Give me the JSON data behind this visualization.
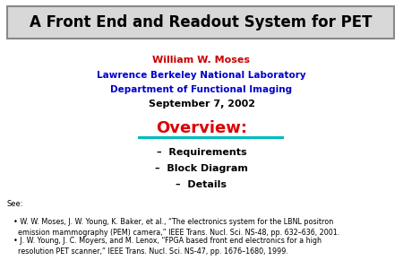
{
  "title": "A Front End and Readout System for PET",
  "author": "William W. Moses",
  "affiliation1": "Lawrence Berkeley National Laboratory",
  "affiliation2": "Department of Functional Imaging",
  "date": "September 7, 2002",
  "overview_label": "Overview:",
  "bullets": [
    "–  Requirements",
    "–  Block Diagram",
    "–  Details"
  ],
  "see_label": "See:",
  "ref1_normal": "• W. W. Moses, J. W. Young, K. Baker, et al., “The electronics system for the LBNL positron\n  emission mammography (PEM) camera,” ",
  "ref1_italic": "IEEE Trans. Nucl. Sci.",
  "ref1_end": " NS-48, pp. 632–636, 2001.",
  "ref2_normal": "• J. W. Young, J. C. Moyers, and M. Lenox, “FPGA based front end electronics for a high\n  resolution PET scanner,” ",
  "ref2_italic": "IEEE Trans. Nucl. Sci.",
  "ref2_end": " NS-47, pp. 1676–1680, 1999.",
  "bg_color": "#ffffff",
  "title_bg": "#d8d8d8",
  "title_border": "#888888",
  "title_color": "#000000",
  "author_color": "#cc0000",
  "affil_color": "#0000cc",
  "date_color": "#000000",
  "overview_color": "#dd0000",
  "underline_color": "#00bbbb",
  "bullet_color": "#000000",
  "ref_color": "#000000",
  "see_color": "#000000",
  "title_fontsize": 12,
  "author_fontsize": 8,
  "affil_fontsize": 7.5,
  "date_fontsize": 8,
  "overview_fontsize": 13,
  "bullet_fontsize": 8,
  "see_fontsize": 6,
  "ref_fontsize": 5.8
}
